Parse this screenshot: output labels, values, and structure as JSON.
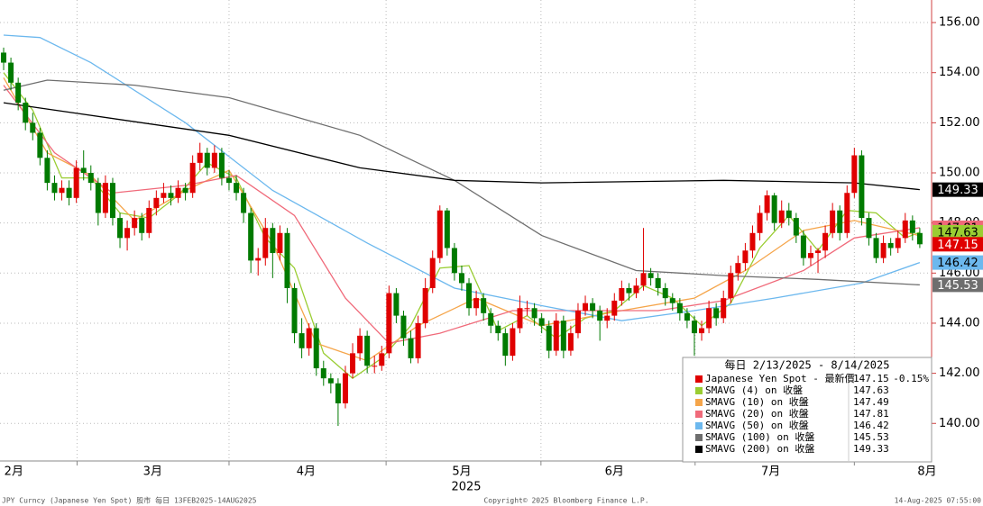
{
  "chart_data": {
    "type": "candlestick",
    "xlim": [
      -0.5,
      127.5
    ],
    "ylim": [
      138.5,
      156.9
    ],
    "yticks": [
      {
        "value": 140,
        "label": "140.00"
      },
      {
        "value": 142,
        "label": "142.00"
      },
      {
        "value": 144,
        "label": "144.00"
      },
      {
        "value": 146,
        "label": "146.00"
      },
      {
        "value": 148,
        "label": "148.00"
      },
      {
        "value": 150,
        "label": "150.00"
      },
      {
        "value": 152,
        "label": "152.00"
      },
      {
        "value": 154,
        "label": "154.00"
      },
      {
        "value": 156,
        "label": "156.00"
      }
    ],
    "xticks": [
      10.1,
      31,
      52.6,
      73.9,
      95.1,
      117
    ],
    "xlabels": [
      {
        "value": 1.4,
        "label": "2月"
      },
      {
        "value": 20.5,
        "label": "3月"
      },
      {
        "value": 41.6,
        "label": "4月"
      },
      {
        "value": 63,
        "label": "5月"
      },
      {
        "value": 84,
        "label": "6月"
      },
      {
        "value": 105.5,
        "label": "7月"
      },
      {
        "value": 127,
        "label": "8月"
      }
    ],
    "year_label": "2025",
    "grid": true,
    "up_color": "#e00000",
    "down_color": "#007a00",
    "name": "Japanese Yen Spot - 最新價",
    "change": {
      "value": -0.15,
      "label": "-0.15%"
    },
    "legend_title": "每日 2/13/2025 - 8/14/2025",
    "candles": [
      [
        154.8,
        155.0,
        154.1,
        154.4
      ],
      [
        154.4,
        154.6,
        153.3,
        153.6
      ],
      [
        153.6,
        153.8,
        152.5,
        152.8
      ],
      [
        152.8,
        153.0,
        151.7,
        152.0
      ],
      [
        152.0,
        152.4,
        151.3,
        151.6
      ],
      [
        151.6,
        151.8,
        150.3,
        150.6
      ],
      [
        150.6,
        150.9,
        149.3,
        149.6
      ],
      [
        149.6,
        149.9,
        148.9,
        149.2
      ],
      [
        149.2,
        149.7,
        148.9,
        149.4
      ],
      [
        149.4,
        149.7,
        148.7,
        149.0
      ],
      [
        149.0,
        150.5,
        148.8,
        150.2
      ],
      [
        150.2,
        150.9,
        149.7,
        150.0
      ],
      [
        150.0,
        150.3,
        149.3,
        149.6
      ],
      [
        149.6,
        149.8,
        147.9,
        148.4
      ],
      [
        148.4,
        149.9,
        148.2,
        149.6
      ],
      [
        149.6,
        149.8,
        147.9,
        148.2
      ],
      [
        148.2,
        148.4,
        147.0,
        147.4
      ],
      [
        147.4,
        148.1,
        146.9,
        147.8
      ],
      [
        147.8,
        148.5,
        147.5,
        148.2
      ],
      [
        148.2,
        148.4,
        147.3,
        147.6
      ],
      [
        147.6,
        148.9,
        147.4,
        148.6
      ],
      [
        148.6,
        149.3,
        148.3,
        149.0
      ],
      [
        149.0,
        149.6,
        148.8,
        149.2
      ],
      [
        149.2,
        149.5,
        148.7,
        149.0
      ],
      [
        149.0,
        149.7,
        148.8,
        149.4
      ],
      [
        149.4,
        149.6,
        148.9,
        149.2
      ],
      [
        149.2,
        150.7,
        149.0,
        150.4
      ],
      [
        150.4,
        151.2,
        150.1,
        150.8
      ],
      [
        150.8,
        151.0,
        149.9,
        150.2
      ],
      [
        150.2,
        151.1,
        150.0,
        150.8
      ],
      [
        150.8,
        151.0,
        149.5,
        149.8
      ],
      [
        149.8,
        150.1,
        149.3,
        149.6
      ],
      [
        149.6,
        149.9,
        148.9,
        149.2
      ],
      [
        149.2,
        149.4,
        148.0,
        148.4
      ],
      [
        148.4,
        148.6,
        146.0,
        146.5
      ],
      [
        146.5,
        147.0,
        145.9,
        146.6
      ],
      [
        146.6,
        148.2,
        146.3,
        147.8
      ],
      [
        147.8,
        148.0,
        145.8,
        146.8
      ],
      [
        146.8,
        147.9,
        146.5,
        147.6
      ],
      [
        147.6,
        147.8,
        144.8,
        145.4
      ],
      [
        145.4,
        145.6,
        143.2,
        143.6
      ],
      [
        143.6,
        144.2,
        142.6,
        143.0
      ],
      [
        143.0,
        144.0,
        142.7,
        143.8
      ],
      [
        143.8,
        144.0,
        141.9,
        142.2
      ],
      [
        142.2,
        142.5,
        141.5,
        141.8
      ],
      [
        141.8,
        142.0,
        141.2,
        141.6
      ],
      [
        141.6,
        141.8,
        139.9,
        140.8
      ],
      [
        140.8,
        142.3,
        140.6,
        142.0
      ],
      [
        142.0,
        143.2,
        141.8,
        142.8
      ],
      [
        142.8,
        143.8,
        142.5,
        143.5
      ],
      [
        143.5,
        143.7,
        142.0,
        142.3
      ],
      [
        142.3,
        142.7,
        142.0,
        142.3
      ],
      [
        142.3,
        143.1,
        142.1,
        142.8
      ],
      [
        142.8,
        145.5,
        142.6,
        145.2
      ],
      [
        145.2,
        145.4,
        144.0,
        144.3
      ],
      [
        144.3,
        144.5,
        143.1,
        143.4
      ],
      [
        143.4,
        143.7,
        142.4,
        142.6
      ],
      [
        142.6,
        144.3,
        142.4,
        144.0
      ],
      [
        144.0,
        145.8,
        143.8,
        145.4
      ],
      [
        145.4,
        146.9,
        145.2,
        146.6
      ],
      [
        146.6,
        148.7,
        146.4,
        148.5
      ],
      [
        148.5,
        148.6,
        146.7,
        147.0
      ],
      [
        147.0,
        147.2,
        145.7,
        146.0
      ],
      [
        146.0,
        146.3,
        145.3,
        145.6
      ],
      [
        145.6,
        145.8,
        144.3,
        144.6
      ],
      [
        144.6,
        145.3,
        144.3,
        145.0
      ],
      [
        145.0,
        145.2,
        144.1,
        144.4
      ],
      [
        144.4,
        144.6,
        143.6,
        143.9
      ],
      [
        143.9,
        144.1,
        143.3,
        143.6
      ],
      [
        143.6,
        143.8,
        142.3,
        142.7
      ],
      [
        142.7,
        144.0,
        142.5,
        143.8
      ],
      [
        143.8,
        145.1,
        143.6,
        144.6
      ],
      [
        144.6,
        144.9,
        144.3,
        144.6
      ],
      [
        144.6,
        144.8,
        143.9,
        144.2
      ],
      [
        144.2,
        144.4,
        143.6,
        143.9
      ],
      [
        143.9,
        144.1,
        142.6,
        142.9
      ],
      [
        142.9,
        144.4,
        142.7,
        144.1
      ],
      [
        144.1,
        144.3,
        142.6,
        142.9
      ],
      [
        142.9,
        143.9,
        142.7,
        143.6
      ],
      [
        143.6,
        144.8,
        143.4,
        144.5
      ],
      [
        144.5,
        145.1,
        144.3,
        144.8
      ],
      [
        144.8,
        145.0,
        144.2,
        144.5
      ],
      [
        144.5,
        144.7,
        143.3,
        144.1
      ],
      [
        144.1,
        144.6,
        143.8,
        144.3
      ],
      [
        144.3,
        145.2,
        144.1,
        144.9
      ],
      [
        144.9,
        145.7,
        144.7,
        145.4
      ],
      [
        145.4,
        145.6,
        144.9,
        145.2
      ],
      [
        145.2,
        145.8,
        145.0,
        145.5
      ],
      [
        145.5,
        147.8,
        145.3,
        146.0
      ],
      [
        146.0,
        146.2,
        145.5,
        145.8
      ],
      [
        145.8,
        146.0,
        145.1,
        145.4
      ],
      [
        145.4,
        145.6,
        144.7,
        145.0
      ],
      [
        145.0,
        145.2,
        144.5,
        144.8
      ],
      [
        144.8,
        145.0,
        144.1,
        144.4
      ],
      [
        144.4,
        144.6,
        143.8,
        144.1
      ],
      [
        144.1,
        144.3,
        142.7,
        143.6
      ],
      [
        143.6,
        144.1,
        143.3,
        143.8
      ],
      [
        143.8,
        144.9,
        143.6,
        144.6
      ],
      [
        144.6,
        144.8,
        143.9,
        144.2
      ],
      [
        144.2,
        145.3,
        144.0,
        145.0
      ],
      [
        145.0,
        146.3,
        144.8,
        146.0
      ],
      [
        146.0,
        146.7,
        145.7,
        146.4
      ],
      [
        146.4,
        147.2,
        146.1,
        146.9
      ],
      [
        146.9,
        147.9,
        146.6,
        147.6
      ],
      [
        147.6,
        148.7,
        147.3,
        148.4
      ],
      [
        148.4,
        149.3,
        148.1,
        149.1
      ],
      [
        149.1,
        149.2,
        147.7,
        148.0
      ],
      [
        148.0,
        148.9,
        147.8,
        148.5
      ],
      [
        148.5,
        148.8,
        147.9,
        148.2
      ],
      [
        148.2,
        148.4,
        147.2,
        147.5
      ],
      [
        147.5,
        147.7,
        146.3,
        146.6
      ],
      [
        146.6,
        147.1,
        146.3,
        146.8
      ],
      [
        146.8,
        147.0,
        146.0,
        146.9
      ],
      [
        146.9,
        147.9,
        146.6,
        147.6
      ],
      [
        147.6,
        148.8,
        147.4,
        148.5
      ],
      [
        148.5,
        148.7,
        147.3,
        147.6
      ],
      [
        147.6,
        149.5,
        147.4,
        149.2
      ],
      [
        149.2,
        151.0,
        149.0,
        150.7
      ],
      [
        150.7,
        150.9,
        147.9,
        148.2
      ],
      [
        148.2,
        148.4,
        147.1,
        147.4
      ],
      [
        147.4,
        147.6,
        146.4,
        146.6
      ],
      [
        146.6,
        147.5,
        146.4,
        147.2
      ],
      [
        147.2,
        147.4,
        146.7,
        147.0
      ],
      [
        147.0,
        147.7,
        146.8,
        147.4
      ],
      [
        147.4,
        148.4,
        147.2,
        148.1
      ],
      [
        148.1,
        148.3,
        147.3,
        147.6
      ],
      [
        147.6,
        147.8,
        147.0,
        147.15
      ]
    ],
    "series": [
      {
        "name": "SMAVG (4)  on 收盤",
        "color": "#9acd32",
        "x": [
          0,
          4,
          8,
          12,
          16,
          20,
          24,
          28,
          32,
          36,
          40,
          44,
          48,
          52,
          56,
          60,
          64,
          68,
          72,
          76,
          80,
          84,
          88,
          92,
          96,
          100,
          104,
          108,
          112,
          116,
          120,
          124,
          126
        ],
        "values": [
          154,
          152.5,
          149.8,
          149.8,
          148.4,
          148.2,
          149.1,
          150.4,
          149.8,
          147.4,
          146.2,
          142.8,
          141.8,
          142.6,
          143.9,
          146.2,
          146.3,
          143.7,
          144.3,
          143.4,
          144.2,
          144.5,
          145.5,
          145.0,
          143.9,
          144.8,
          147.0,
          148.3,
          146.9,
          148.5,
          148.4,
          147.4,
          147.63
        ]
      },
      {
        "name": "SMAVG (10)  on 收盤",
        "color": "#f5a54a",
        "x": [
          0,
          6,
          12,
          18,
          25,
          31,
          37,
          43,
          50,
          57,
          65,
          74,
          85,
          95,
          102,
          110,
          117,
          126
        ],
        "values": [
          153.8,
          150.8,
          149.9,
          148.1,
          149.3,
          150.1,
          147.2,
          143.2,
          142.5,
          143.9,
          145.0,
          143.9,
          144.5,
          145.0,
          146.1,
          147.7,
          148.1,
          147.49
        ]
      },
      {
        "name": "SMAVG (20)  on 收盤",
        "color": "#f06a7a",
        "x": [
          0,
          7,
          15,
          25,
          32,
          40,
          47,
          53,
          60,
          70,
          80,
          90,
          99,
          110,
          117,
          126
        ],
        "values": [
          153.5,
          150.8,
          149.2,
          149.5,
          149.9,
          148.3,
          145.0,
          143.2,
          143.6,
          144.5,
          144.5,
          144.5,
          144.9,
          146.1,
          147.4,
          147.81
        ]
      },
      {
        "name": "SMAVG (50)  on 收盤",
        "color": "#6cb8ee",
        "x": [
          0,
          5,
          12,
          25,
          37,
          50,
          62,
          74,
          85,
          95,
          106,
          118,
          126
        ],
        "values": [
          155.5,
          155.4,
          154.4,
          152.0,
          149.3,
          147.2,
          145.4,
          144.7,
          144.1,
          144.5,
          145.0,
          145.6,
          146.42
        ]
      },
      {
        "name": "SMAVG (100)  on 收盤",
        "color": "#6e6e6e",
        "x": [
          0,
          6,
          18,
          31,
          49,
          62,
          74,
          87,
          99,
          112,
          126
        ],
        "values": [
          153.3,
          153.7,
          153.5,
          153.0,
          151.5,
          149.7,
          147.5,
          146.1,
          145.9,
          145.75,
          145.53
        ]
      },
      {
        "name": "SMAVG (200)  on 收盤",
        "color": "#000000",
        "x": [
          0,
          31,
          49,
          62,
          74,
          99,
          117,
          126
        ],
        "values": [
          152.8,
          151.5,
          150.2,
          149.7,
          149.6,
          149.7,
          149.6,
          149.33
        ]
      }
    ],
    "footer_left": "JPY Curncy (Japanese Yen Spot) 股市  每日 13FEB2025-14AUG2025",
    "footer_center": "Copyright© 2025 Bloomberg Finance L.P.",
    "footer_right": "14-Aug-2025 07:55:00"
  }
}
